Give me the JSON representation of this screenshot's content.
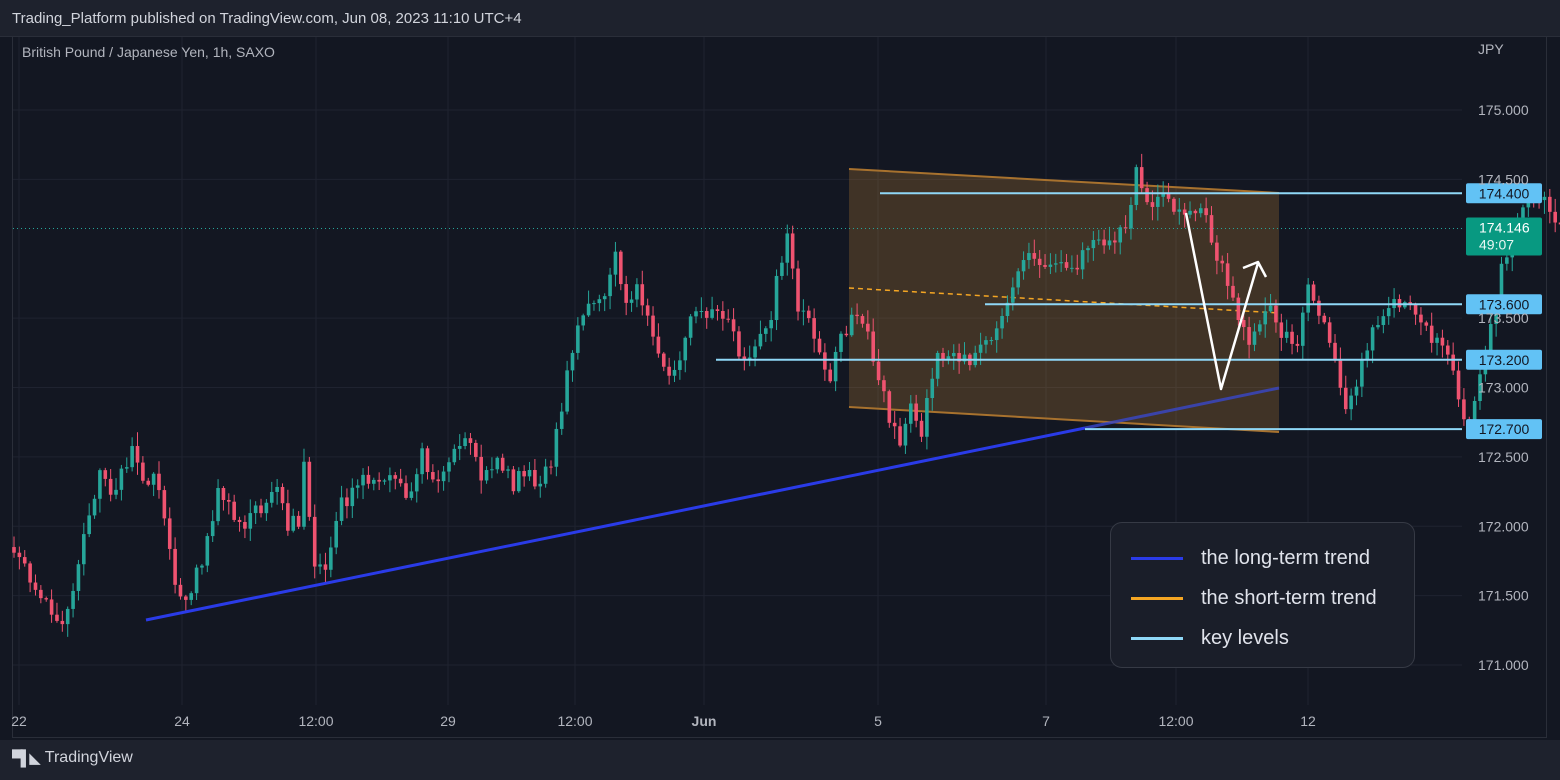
{
  "header": {
    "published": "Trading_Platform published on TradingView.com, Jun 08, 2023 11:10 UTC+4"
  },
  "symbol": {
    "title": "British Pound / Japanese Yen, 1h, SAXO"
  },
  "footer": {
    "brand": "TradingView"
  },
  "legend": {
    "items": [
      {
        "label": "the long-term trend",
        "color": "#2a3be8"
      },
      {
        "label": "the short-term trend",
        "color": "#f5a623"
      },
      {
        "label": "key levels",
        "color": "#8fd8f7"
      }
    ]
  },
  "chart_data": {
    "type": "candlestick",
    "title": "British Pound / Japanese Yen, 1h, SAXO",
    "currency_label": "JPY",
    "ylim": [
      170.75,
      175.35
    ],
    "y_ticks": [
      "175.000",
      "174.500",
      "173.500",
      "173.000",
      "172.500",
      "172.000",
      "171.500",
      "171.000"
    ],
    "x_ticks": [
      "22",
      "24",
      "12:00",
      "29",
      "12:00",
      "Jun",
      "5",
      "7",
      "12:00",
      "12"
    ],
    "last_price": "174.146",
    "countdown": "49:07",
    "up_color": "#26a69a",
    "down_color": "#ef5370",
    "key_levels": [
      {
        "label": "174.400",
        "value": 174.4
      },
      {
        "label": "173.600",
        "value": 173.6
      },
      {
        "label": "173.200",
        "value": 173.2
      },
      {
        "label": "172.700",
        "value": 172.7
      }
    ],
    "path": [
      [
        0,
        171.85
      ],
      [
        3,
        171.6
      ],
      [
        6,
        171.45
      ],
      [
        9,
        171.3
      ],
      [
        11,
        171.55
      ],
      [
        14,
        172.1
      ],
      [
        16,
        172.4
      ],
      [
        18,
        172.2
      ],
      [
        22,
        172.55
      ],
      [
        24,
        172.3
      ],
      [
        26,
        172.4
      ],
      [
        28,
        172.1
      ],
      [
        30,
        171.55
      ],
      [
        32,
        171.45
      ],
      [
        35,
        171.75
      ],
      [
        38,
        172.25
      ],
      [
        41,
        172.1
      ],
      [
        43,
        172.0
      ],
      [
        46,
        172.15
      ],
      [
        49,
        172.25
      ],
      [
        51,
        172.0
      ],
      [
        53,
        172.05
      ],
      [
        54,
        172.5
      ],
      [
        56,
        171.7
      ],
      [
        58,
        171.7
      ],
      [
        61,
        172.15
      ],
      [
        64,
        172.3
      ],
      [
        67,
        172.35
      ],
      [
        70,
        172.4
      ],
      [
        72,
        172.3
      ],
      [
        74,
        172.2
      ],
      [
        76,
        172.6
      ],
      [
        78,
        172.3
      ],
      [
        81,
        172.45
      ],
      [
        84,
        172.65
      ],
      [
        87,
        172.35
      ],
      [
        90,
        172.45
      ],
      [
        93,
        172.3
      ],
      [
        95,
        172.4
      ],
      [
        98,
        172.3
      ],
      [
        100,
        172.45
      ],
      [
        102,
        172.85
      ],
      [
        104,
        173.3
      ],
      [
        107,
        173.65
      ],
      [
        110,
        173.7
      ],
      [
        112,
        173.95
      ],
      [
        114,
        173.6
      ],
      [
        116,
        173.7
      ],
      [
        118,
        173.5
      ],
      [
        120,
        173.3
      ],
      [
        122,
        173.05
      ],
      [
        124,
        173.25
      ],
      [
        126,
        173.5
      ],
      [
        129,
        173.5
      ],
      [
        132,
        173.55
      ],
      [
        134,
        173.35
      ],
      [
        136,
        173.15
      ],
      [
        138,
        173.3
      ],
      [
        141,
        173.5
      ],
      [
        142,
        173.8
      ],
      [
        144,
        174.1
      ],
      [
        146,
        173.6
      ],
      [
        148,
        173.45
      ],
      [
        150,
        173.3
      ],
      [
        152,
        173.05
      ],
      [
        154,
        173.4
      ],
      [
        157,
        173.5
      ],
      [
        159,
        173.35
      ],
      [
        161,
        173.1
      ],
      [
        163,
        172.8
      ],
      [
        165,
        172.6
      ],
      [
        167,
        172.9
      ],
      [
        169,
        172.7
      ],
      [
        172,
        173.2
      ],
      [
        175,
        173.25
      ],
      [
        177,
        173.2
      ],
      [
        180,
        173.25
      ],
      [
        183,
        173.45
      ],
      [
        186,
        173.75
      ],
      [
        189,
        173.95
      ],
      [
        192,
        173.85
      ],
      [
        195,
        173.9
      ],
      [
        198,
        173.85
      ],
      [
        201,
        174.1
      ],
      [
        204,
        174.0
      ],
      [
        207,
        174.2
      ],
      [
        209,
        174.55
      ],
      [
        211,
        174.3
      ],
      [
        214,
        174.35
      ],
      [
        217,
        174.3
      ],
      [
        220,
        174.3
      ],
      [
        222,
        174.2
      ],
      [
        224,
        173.95
      ],
      [
        226,
        173.75
      ],
      [
        228,
        173.5
      ],
      [
        230,
        173.3
      ],
      [
        233,
        173.6
      ],
      [
        236,
        173.4
      ],
      [
        239,
        173.35
      ],
      [
        241,
        173.7
      ],
      [
        243,
        173.55
      ],
      [
        246,
        173.2
      ],
      [
        248,
        172.9
      ],
      [
        250,
        173.0
      ],
      [
        252,
        173.3
      ],
      [
        255,
        173.55
      ],
      [
        258,
        173.6
      ],
      [
        260,
        173.55
      ],
      [
        262,
        173.5
      ],
      [
        264,
        173.35
      ],
      [
        266,
        173.3
      ],
      [
        268,
        173.1
      ],
      [
        270,
        172.8
      ],
      [
        271,
        172.75
      ],
      [
        273,
        173.1
      ],
      [
        275,
        173.4
      ],
      [
        277,
        173.85
      ],
      [
        280,
        174.2
      ],
      [
        282,
        174.4
      ],
      [
        284,
        174.4
      ],
      [
        286,
        174.25
      ],
      [
        288,
        174.15
      ],
      [
        290,
        174.2
      ],
      [
        292,
        174.1
      ],
      [
        294,
        174.15
      ]
    ]
  }
}
